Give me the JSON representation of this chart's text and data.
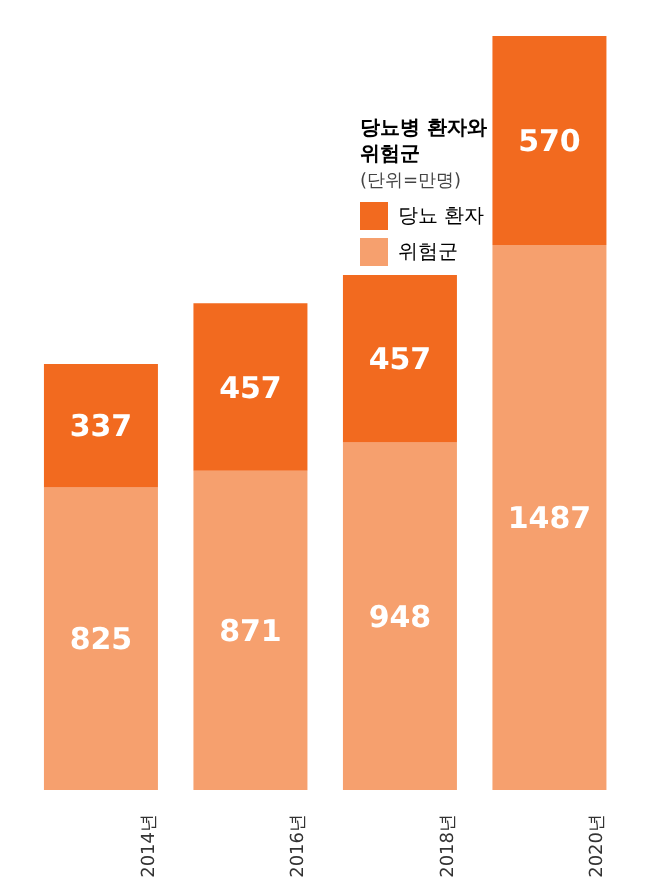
{
  "chart_data": {
    "type": "bar",
    "title": "당뇨병 환자와 위험군",
    "subtitle": "(단위=만명)",
    "categories": [
      "2014년",
      "2016년",
      "2018년",
      "2020년"
    ],
    "stacked": true,
    "data_labels": true,
    "legend": "top right",
    "grid": false,
    "series": [
      {
        "name": "위험군",
        "color": "#f6a06e",
        "values": [
          825,
          871,
          948,
          1487
        ]
      },
      {
        "name": "당뇨 환자",
        "color": "#f26a1f",
        "values": [
          337,
          457,
          457,
          570
        ]
      }
    ]
  }
}
